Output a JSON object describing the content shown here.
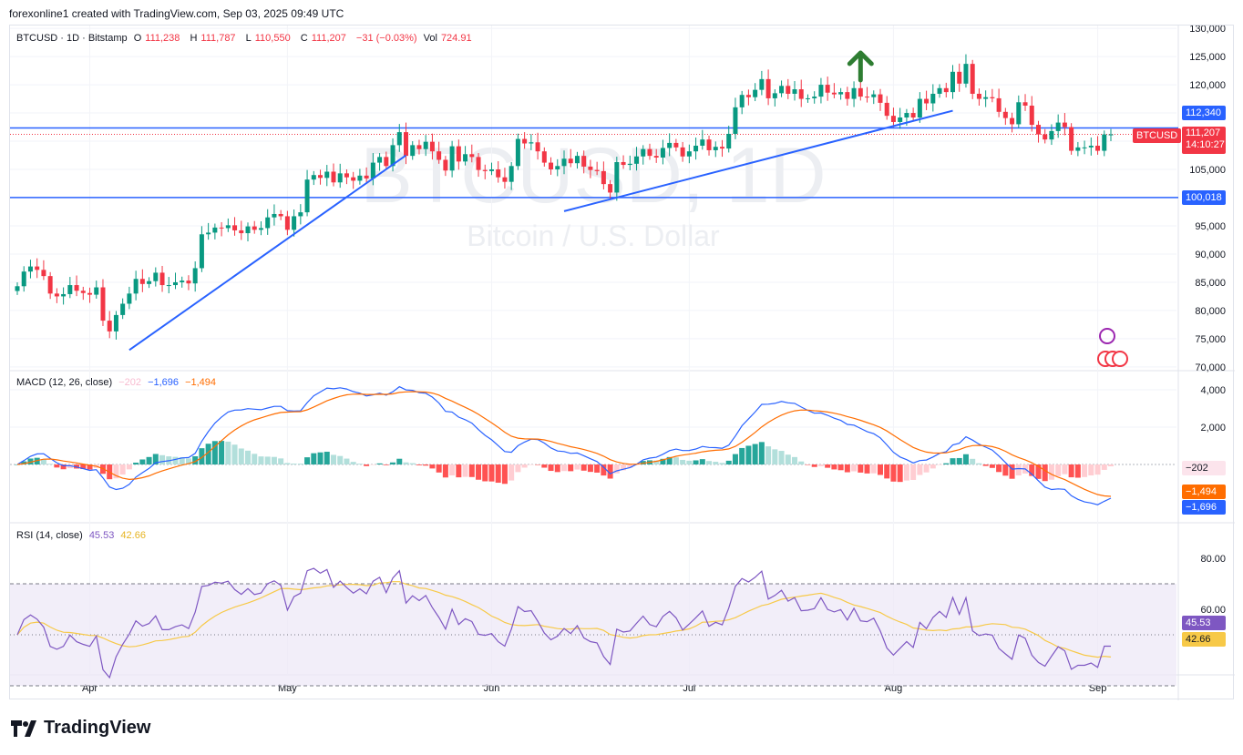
{
  "header": {
    "text": "forexonline1 created with TradingView.com, Sep 03, 2025 09:49 UTC"
  },
  "legend": {
    "symbol": "BTCUSD · 1D · Bitstamp",
    "o_label": "O",
    "o": "111,238",
    "h_label": "H",
    "h": "111,787",
    "l_label": "L",
    "l": "110,550",
    "c_label": "C",
    "c": "111,207",
    "change": "−31 (−0.03%)",
    "vol_label": "Vol",
    "vol": "724.91"
  },
  "watermark": {
    "title": "BTCUSD, 1D",
    "subtitle": "Bitcoin / U.S. Dollar"
  },
  "macd_legend": {
    "label": "MACD (12, 26, close)",
    "hist": "−202",
    "macd": "−1,696",
    "signal": "−1,494"
  },
  "rsi_legend": {
    "label": "RSI (14, close)",
    "rsi": "45.53",
    "ma": "42.66"
  },
  "price_tags": {
    "symbol": "BTCUSD",
    "last": "111,207",
    "countdown": "14:10:27",
    "resistance": "112,340",
    "support": "100,018",
    "macd_hist": "−202",
    "macd_signal": "−1,494",
    "macd_line": "−1,696",
    "rsi": "45.53",
    "rsi_ma": "42.66"
  },
  "brand": "TradingView",
  "colors": {
    "up": "#089981",
    "down": "#f23645",
    "level": "#2962ff",
    "macd": "#2962ff",
    "signal": "#ff6d00",
    "rsi": "#7e57c2",
    "rsi_ma": "#f7c948",
    "arrow": "#2e7d32"
  },
  "chart_data": {
    "type": "candlestick",
    "x_tick_labels": [
      "Apr",
      "May",
      "Jun",
      "Jul",
      "Aug",
      "Sep"
    ],
    "price_axis": {
      "ticks": [
        70000,
        75000,
        80000,
        85000,
        90000,
        95000,
        100000,
        105000,
        110000,
        115000,
        120000,
        125000,
        130000
      ],
      "labels": [
        "70,000",
        "75,000",
        "80,000",
        "85,000",
        "90,000",
        "95,000",
        "100,000",
        "105,000",
        "110,000",
        "115,000",
        "120,000",
        "125,000",
        "130,000"
      ],
      "range": [
        69500,
        130500
      ]
    },
    "horizontal_levels": [
      112340,
      100018
    ],
    "last_price": 111207,
    "closes": [
      84300,
      86900,
      87800,
      87200,
      86100,
      83000,
      82500,
      82900,
      84500,
      83500,
      83100,
      82800,
      84100,
      78200,
      76300,
      79200,
      81200,
      83000,
      85600,
      84700,
      85200,
      86700,
      84500,
      84500,
      85000,
      85300,
      84800,
      87500,
      93500,
      93800,
      94700,
      94600,
      95100,
      94200,
      93700,
      94900,
      94300,
      94600,
      96500,
      97100,
      96700,
      94300,
      96700,
      97400,
      103200,
      104000,
      103500,
      104600,
      102700,
      104300,
      103600,
      103000,
      103900,
      103400,
      106200,
      107200,
      105600,
      109300,
      111600,
      107400,
      109300,
      108600,
      109900,
      108200,
      106700,
      104800,
      109100,
      106400,
      107700,
      107200,
      104900,
      104700,
      105000,
      103600,
      102800,
      105600,
      110400,
      109600,
      109800,
      108200,
      106200,
      105000,
      105600,
      106900,
      106100,
      107400,
      105500,
      104900,
      104700,
      102400,
      100900,
      106300,
      105800,
      106000,
      107300,
      108600,
      107400,
      107100,
      108800,
      109700,
      108900,
      107300,
      108200,
      109200,
      110300,
      108400,
      109000,
      108700,
      111300,
      116000,
      118200,
      117800,
      119100,
      121000,
      117600,
      118500,
      119800,
      118400,
      119200,
      117500,
      117600,
      117900,
      120000,
      118600,
      118300,
      118700,
      117500,
      119400,
      117900,
      117800,
      118300,
      116800,
      114500,
      113400,
      114200,
      115000,
      114200,
      117500,
      116700,
      118400,
      119400,
      118700,
      122300,
      120200,
      123700,
      118400,
      117500,
      117800,
      117600,
      115200,
      114100,
      113000,
      116900,
      116300,
      112900,
      111200,
      110300,
      111800,
      113300,
      112500,
      108300,
      108900,
      108900,
      109200,
      108300,
      111200,
      111207
    ],
    "macd_axis": {
      "ticks": [
        2000,
        4000
      ],
      "labels": [
        "2,000",
        "4,000"
      ]
    },
    "rsi_axis": {
      "ticks": [
        60,
        80
      ],
      "labels": [
        "60.00",
        "80.00"
      ],
      "bands": [
        30,
        70
      ]
    }
  }
}
